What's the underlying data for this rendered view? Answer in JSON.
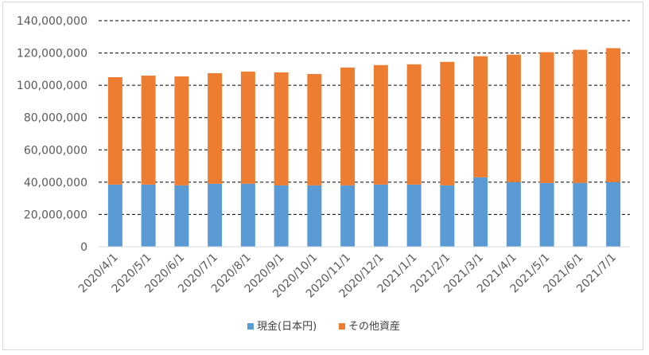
{
  "colors": {
    "cash": "#5b9bd5",
    "other": "#ed7d31",
    "grid": "#000000",
    "axis": "#d9d9d9",
    "text": "#595959"
  },
  "chart_data": {
    "type": "bar",
    "stacked": true,
    "categories": [
      "2020/4/1",
      "2020/5/1",
      "2020/6/1",
      "2020/7/1",
      "2020/8/1",
      "2020/9/1",
      "2020/10/1",
      "2020/11/1",
      "2020/12/1",
      "2021/1/1",
      "2021/2/1",
      "2021/3/1",
      "2021/4/1",
      "2021/5/1",
      "2021/6/1",
      "2021/7/1"
    ],
    "series": [
      {
        "name": "現金(日本円)",
        "color": "#5b9bd5",
        "values": [
          38500000,
          38500000,
          38000000,
          39000000,
          39000000,
          38000000,
          38000000,
          38000000,
          38500000,
          38500000,
          38000000,
          43000000,
          40000000,
          39500000,
          39500000,
          40000000
        ]
      },
      {
        "name": "その他資産",
        "color": "#ed7d31",
        "values": [
          66500000,
          67500000,
          67500000,
          68500000,
          69500000,
          70000000,
          69000000,
          73000000,
          74000000,
          74500000,
          76500000,
          75000000,
          79000000,
          81000000,
          82500000,
          83000000
        ]
      }
    ],
    "ylim": [
      0,
      140000000
    ],
    "yticks": [
      "0",
      "20,000,000",
      "40,000,000",
      "60,000,000",
      "80,000,000",
      "100,000,000",
      "120,000,000",
      "140,000,000"
    ],
    "grid": true,
    "legend": "bottom"
  }
}
